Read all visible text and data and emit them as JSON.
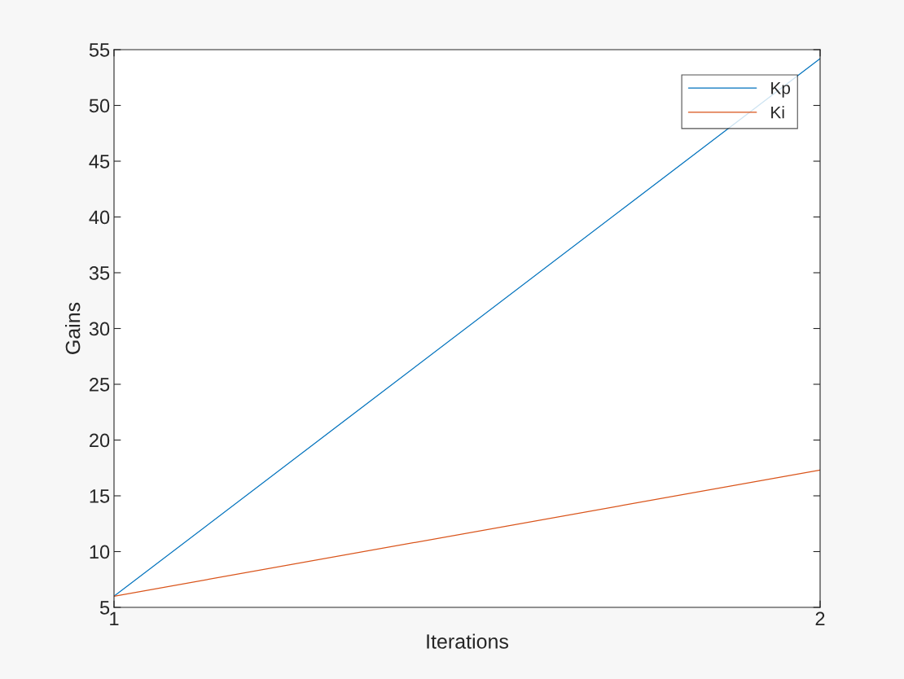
{
  "chart_data": {
    "type": "line",
    "xlabel": "Iterations",
    "ylabel": "Gains",
    "x": [
      1,
      2
    ],
    "series": [
      {
        "name": "Kp",
        "color": "#0072bd",
        "values": [
          6.0,
          54.2
        ]
      },
      {
        "name": "Ki",
        "color": "#d95319",
        "values": [
          6.0,
          17.3
        ]
      }
    ],
    "xlim": [
      1,
      2
    ],
    "xticks": [
      1,
      2
    ],
    "ylim": [
      5,
      55
    ],
    "yticks": [
      5,
      10,
      15,
      20,
      25,
      30,
      35,
      40,
      45,
      50,
      55
    ],
    "grid": false,
    "legend": "top right",
    "line_style": "solid",
    "marker": "none"
  }
}
